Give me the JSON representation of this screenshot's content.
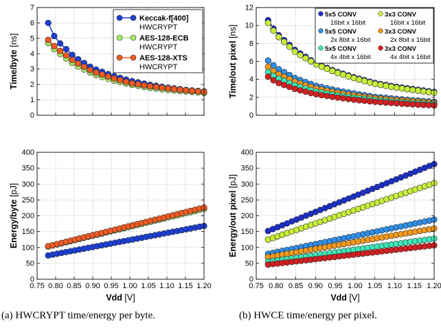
{
  "captions": {
    "a": "(a) HWCRYPT time/energy per byte.",
    "b": "(b) HWCE time/energy per pixel."
  },
  "chart_data": [
    {
      "id": "crypt_time",
      "type": "scatter",
      "ylabel_bold": "Time/byte",
      "ylabel_unit": "[ns]",
      "xlim": [
        0.75,
        1.2
      ],
      "ylim": [
        0,
        7
      ],
      "yticks": [
        "0",
        "1",
        "2",
        "3",
        "4",
        "5",
        "6",
        "7"
      ],
      "xticks": [],
      "grid": true,
      "legend": "top-right",
      "legend_cols": 1,
      "series": [
        {
          "name": "Keccak-f[400]",
          "sub": "HWCRYPT",
          "color": "#1c3fd6",
          "x": [
            0.78,
            0.8,
            0.85,
            0.9,
            0.95,
            1.0,
            1.05,
            1.1,
            1.15,
            1.2
          ],
          "y": [
            6.0,
            4.95,
            3.8,
            3.05,
            2.6,
            2.25,
            2.0,
            1.8,
            1.65,
            1.55
          ]
        },
        {
          "name": "AES-128-ECB",
          "sub": "HWCRYPT",
          "color": "#a8ef6a",
          "x": [
            0.78,
            0.8,
            0.85,
            0.9,
            0.95,
            1.0,
            1.05,
            1.1,
            1.15,
            1.2
          ],
          "y": [
            4.7,
            4.2,
            3.3,
            2.7,
            2.3,
            2.0,
            1.8,
            1.65,
            1.55,
            1.45
          ]
        },
        {
          "name": "AES-128-XTS",
          "sub": "HWCRYPT",
          "color": "#f05a24",
          "x": [
            0.78,
            0.8,
            0.85,
            0.9,
            0.95,
            1.0,
            1.05,
            1.1,
            1.15,
            1.2
          ],
          "y": [
            4.9,
            4.4,
            3.5,
            2.85,
            2.45,
            2.1,
            1.9,
            1.75,
            1.62,
            1.52
          ]
        }
      ]
    },
    {
      "id": "hwce_time",
      "type": "scatter",
      "ylabel_bold": "Time/out pixel",
      "ylabel_unit": "[ns]",
      "xlim": [
        0.75,
        1.2
      ],
      "ylim": [
        0,
        12
      ],
      "yticks": [
        "0",
        "2",
        "4",
        "6",
        "8",
        "10",
        "12"
      ],
      "xticks": [],
      "grid": true,
      "legend": "top",
      "legend_cols": 2,
      "series": [
        {
          "name": "5x5 CONV",
          "sub": "16bit x 16bit",
          "color": "#1c2fc6",
          "x": [
            0.78,
            0.8,
            0.85,
            0.9,
            0.95,
            1.0,
            1.05,
            1.1,
            1.15,
            1.2
          ],
          "y": [
            10.6,
            9.2,
            7.2,
            5.8,
            4.9,
            4.2,
            3.6,
            3.2,
            2.9,
            2.6
          ]
        },
        {
          "name": "3x3 CONV",
          "sub": "16bit x 16bit",
          "color": "#c7ef3a",
          "x": [
            0.78,
            0.8,
            0.85,
            0.9,
            0.95,
            1.0,
            1.05,
            1.1,
            1.15,
            1.2
          ],
          "y": [
            10.3,
            9.0,
            7.0,
            5.7,
            4.8,
            4.1,
            3.5,
            3.1,
            2.8,
            2.5
          ]
        },
        {
          "name": "5x5 CONV",
          "sub": "2x 8bit x 16bit",
          "color": "#2f8fe8",
          "x": [
            0.78,
            0.8,
            0.85,
            0.9,
            0.95,
            1.0,
            1.05,
            1.1,
            1.15,
            1.2
          ],
          "y": [
            6.1,
            5.3,
            4.1,
            3.3,
            2.8,
            2.4,
            2.05,
            1.85,
            1.65,
            1.5
          ]
        },
        {
          "name": "3x3 CONV",
          "sub": "2x 8bit x 16bit",
          "color": "#f39a1c",
          "x": [
            0.78,
            0.8,
            0.85,
            0.9,
            0.95,
            1.0,
            1.05,
            1.1,
            1.15,
            1.2
          ],
          "y": [
            5.4,
            4.7,
            3.7,
            3.0,
            2.55,
            2.2,
            1.9,
            1.7,
            1.55,
            1.4
          ]
        },
        {
          "name": "5x5 CONV",
          "sub": "4x 4bit x 16bit",
          "color": "#3ee8b8",
          "x": [
            0.78,
            0.8,
            0.85,
            0.9,
            0.95,
            1.0,
            1.05,
            1.1,
            1.15,
            1.2
          ],
          "y": [
            4.8,
            4.2,
            3.3,
            2.65,
            2.25,
            1.95,
            1.7,
            1.5,
            1.35,
            1.25
          ]
        },
        {
          "name": "3x3 CONV",
          "sub": "4x 4bit x 16bit",
          "color": "#d42020",
          "x": [
            0.78,
            0.8,
            0.85,
            0.9,
            0.95,
            1.0,
            1.05,
            1.1,
            1.15,
            1.2
          ],
          "y": [
            4.3,
            3.7,
            2.9,
            2.35,
            2.0,
            1.72,
            1.5,
            1.35,
            1.2,
            1.1
          ]
        }
      ]
    },
    {
      "id": "crypt_energy",
      "type": "scatter",
      "ylabel_bold": "Energy/byte",
      "ylabel_unit": "[pJ]",
      "xlabel_bold": "Vdd",
      "xlabel_unit": "[V]",
      "xlim": [
        0.75,
        1.2
      ],
      "ylim": [
        0,
        400
      ],
      "yticks": [
        "0",
        "50",
        "100",
        "150",
        "200",
        "250",
        "300",
        "350",
        "400"
      ],
      "xticks": [
        "0.75",
        "0.80",
        "0.85",
        "0.90",
        "0.95",
        "1.00",
        "1.05",
        "1.10",
        "1.15",
        "1.20"
      ],
      "grid": true,
      "series": [
        {
          "name": "Keccak-f[400]",
          "color": "#1c3fd6",
          "x": [
            0.78,
            1.2
          ],
          "y": [
            75,
            168
          ]
        },
        {
          "name": "AES-128-ECB",
          "color": "#a8ef6a",
          "x": [
            0.78,
            1.2
          ],
          "y": [
            103,
            222
          ]
        },
        {
          "name": "AES-128-XTS",
          "color": "#f05a24",
          "x": [
            0.78,
            1.2
          ],
          "y": [
            104,
            226
          ]
        }
      ]
    },
    {
      "id": "hwce_energy",
      "type": "scatter",
      "ylabel_bold": "Energy/out pixel",
      "ylabel_unit": "[pJ]",
      "xlabel_bold": "Vdd",
      "xlabel_unit": "[V]",
      "xlim": [
        0.75,
        1.2
      ],
      "ylim": [
        0,
        400
      ],
      "yticks": [
        "0",
        "50",
        "100",
        "150",
        "200",
        "250",
        "300",
        "350",
        "400"
      ],
      "xticks": [
        "0.75",
        "0.80",
        "0.85",
        "0.90",
        "0.95",
        "1.00",
        "1.05",
        "1.10",
        "1.15",
        "1.20"
      ],
      "grid": true,
      "series": [
        {
          "name": "5x5 CONV 16bit x 16bit",
          "color": "#1c2fc6",
          "x": [
            0.78,
            1.2
          ],
          "y": [
            152,
            363
          ]
        },
        {
          "name": "3x3 CONV 16bit x 16bit",
          "color": "#c7ef3a",
          "x": [
            0.78,
            1.2
          ],
          "y": [
            125,
            303
          ]
        },
        {
          "name": "5x5 CONV 2x 8bit x 16bit",
          "color": "#2f8fe8",
          "x": [
            0.78,
            1.2
          ],
          "y": [
            80,
            188
          ]
        },
        {
          "name": "3x3 CONV 2x 8bit x 16bit",
          "color": "#f39a1c",
          "x": [
            0.78,
            1.2
          ],
          "y": [
            70,
            160
          ]
        },
        {
          "name": "5x5 CONV 4x 4bit x 16bit",
          "color": "#3ee8b8",
          "x": [
            0.78,
            1.2
          ],
          "y": [
            55,
            128
          ]
        },
        {
          "name": "3x3 CONV 4x 4bit x 16bit",
          "color": "#d42020",
          "x": [
            0.78,
            1.2
          ],
          "y": [
            46,
            107
          ]
        }
      ]
    }
  ]
}
